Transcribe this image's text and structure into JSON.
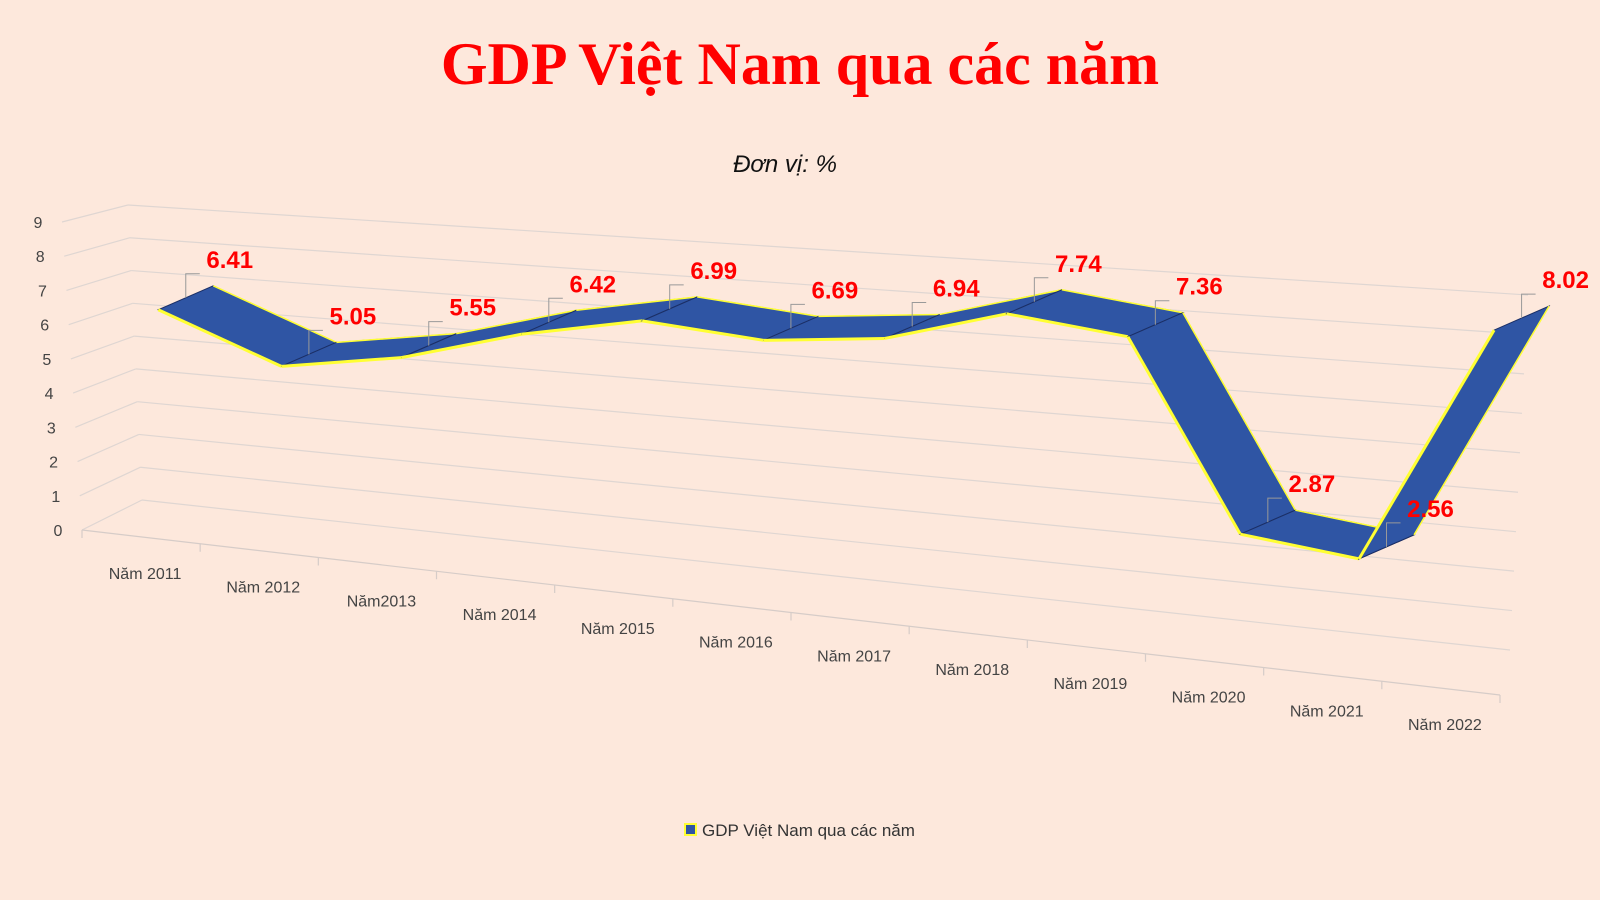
{
  "chart_data": {
    "type": "line",
    "title": "GDP Việt Nam qua các năm",
    "subtitle": "Đơn vị: %",
    "categories": [
      "Năm 2011",
      "Năm 2012",
      "Năm2013",
      "Năm 2014",
      "Năm 2015",
      "Năm 2016",
      "Năm 2017",
      "Năm 2018",
      "Năm 2019",
      "Năm 2020",
      "Năm 2021",
      "Năm 2022"
    ],
    "series": [
      {
        "name": "GDP Việt Nam qua các năm",
        "values": [
          6.41,
          5.05,
          5.55,
          6.42,
          6.99,
          6.69,
          6.94,
          7.74,
          7.36,
          2.87,
          2.56,
          8.02
        ],
        "labels": [
          "6.41",
          "5.05",
          "5.55",
          "6.42",
          "6.99",
          "6.69",
          "6.94",
          "7.74",
          "7.36",
          "2.87",
          "2.56",
          "8.02"
        ]
      }
    ],
    "y_ticks": [
      "0",
      "1",
      "2",
      "3",
      "4",
      "5",
      "6",
      "7",
      "8",
      "9"
    ],
    "ylim": [
      0,
      9
    ],
    "grid": true,
    "legend": "bottom",
    "style": "3d-ribbon",
    "colors": {
      "ribbon": "#2f55a4",
      "edge": "#ffff33",
      "label": "#ff0000",
      "title": "#ff0000",
      "background": "#fde8dc"
    }
  }
}
